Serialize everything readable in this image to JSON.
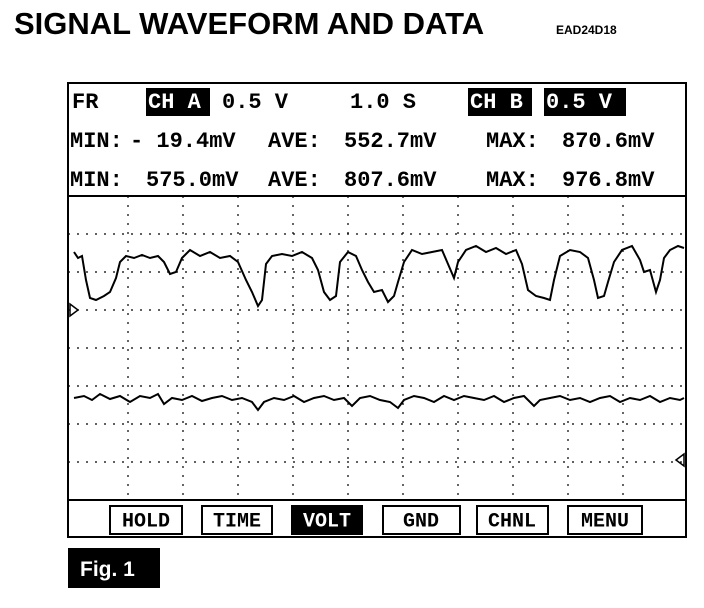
{
  "header": {
    "title": "SIGNAL WAVEFORM AND DATA",
    "code": "EAD24D18"
  },
  "status": {
    "mode": "FR",
    "channel_a": "CH A",
    "volt_a": "0.5 V",
    "time": "1.0 S",
    "channel_b": "CH B",
    "volt_b": "0.5 V"
  },
  "readings": [
    {
      "min_label": "MIN:",
      "min": "- 19.4mV",
      "ave_label": "AVE:",
      "ave": "552.7mV",
      "max_label": "MAX:",
      "max": "870.6mV"
    },
    {
      "min_label": "MIN:",
      "min": "575.0mV",
      "ave_label": "AVE:",
      "ave": "807.6mV",
      "max_label": "MAX:",
      "max": "976.8mV"
    }
  ],
  "buttons": [
    "HOLD",
    "TIME",
    "VOLT",
    "GND",
    "CHNL",
    "MENU"
  ],
  "figure": "Fig. 1"
}
